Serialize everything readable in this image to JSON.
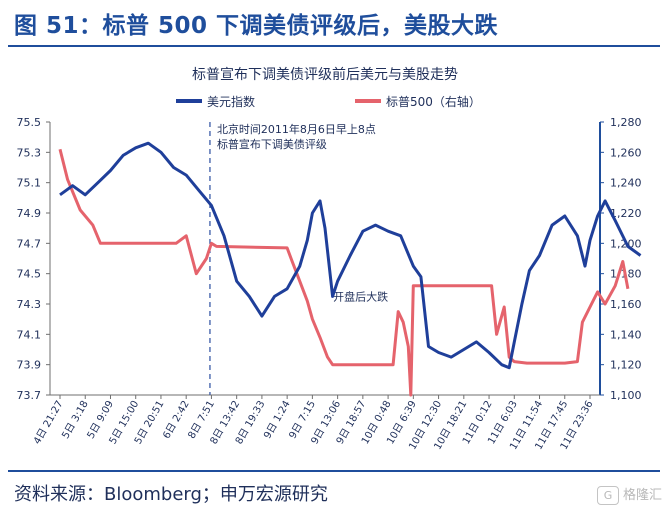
{
  "figure": {
    "title": "图 51：标普 500 下调美债评级后，美股大跌",
    "source": "资料来源：Bloomberg；申万宏源研究",
    "watermark": "格隆汇",
    "watermark_badge": "G"
  },
  "colors": {
    "heading": "#1f4e9c",
    "usd": "#1f3f9a",
    "spx": "#e5636c",
    "right_axis": "#1f4e9c"
  },
  "chart_data": {
    "type": "line",
    "title": "标普宣布下调美债评级前后美元与美股走势",
    "legend": [
      "美元指数",
      "标普500（右轴）"
    ],
    "legend_position": "top",
    "x_tick_labels": [
      "4日 21:27",
      "5日 3:18",
      "5日 9:09",
      "5日 15:00",
      "5日 20:51",
      "6日 2:42",
      "8日 7:51",
      "8日 13:42",
      "8日 19:33",
      "9日 1:24",
      "9日 7:15",
      "9日 13:06",
      "9日 18:57",
      "10日 0:48",
      "10日 6:39",
      "10日 12:30",
      "10日 18:21",
      "11日 0:12",
      "11日 6:03",
      "11日 11:54",
      "11日 17:45",
      "11日 23:36"
    ],
    "left_axis": {
      "ylim": [
        73.7,
        75.5
      ],
      "ticks": [
        "73.7",
        "73.9",
        "74.1",
        "74.3",
        "74.5",
        "74.7",
        "74.9",
        "75.1",
        "75.3",
        "75.5"
      ]
    },
    "right_axis": {
      "ylim": [
        1100,
        1280
      ],
      "ticks": [
        "1,100",
        "1,120",
        "1,140",
        "1,160",
        "1,180",
        "1,200",
        "1,220",
        "1,240",
        "1,260",
        "1,280"
      ]
    },
    "grid": false,
    "series": [
      {
        "name": "美元指数",
        "axis": "left",
        "points": [
          [
            0,
            75.02
          ],
          [
            0.5,
            75.08
          ],
          [
            1,
            75.02
          ],
          [
            1.5,
            75.1
          ],
          [
            2,
            75.18
          ],
          [
            2.5,
            75.28
          ],
          [
            3,
            75.33
          ],
          [
            3.5,
            75.36
          ],
          [
            4,
            75.3
          ],
          [
            4.5,
            75.2
          ],
          [
            5,
            75.15
          ],
          [
            5.5,
            75.05
          ],
          [
            6,
            74.95
          ],
          [
            6.5,
            74.75
          ],
          [
            7,
            74.45
          ],
          [
            7.5,
            74.35
          ],
          [
            8,
            74.22
          ],
          [
            8.5,
            74.35
          ],
          [
            9,
            74.4
          ],
          [
            9.5,
            74.55
          ],
          [
            9.8,
            74.72
          ],
          [
            10,
            74.9
          ],
          [
            10.3,
            74.98
          ],
          [
            10.5,
            74.8
          ],
          [
            10.8,
            74.35
          ],
          [
            11,
            74.45
          ],
          [
            11.5,
            74.62
          ],
          [
            12,
            74.78
          ],
          [
            12.5,
            74.82
          ],
          [
            13,
            74.78
          ],
          [
            13.5,
            74.75
          ],
          [
            14,
            74.55
          ],
          [
            14.3,
            74.48
          ],
          [
            14.6,
            74.02
          ],
          [
            15,
            73.98
          ],
          [
            15.5,
            73.95
          ],
          [
            16,
            74.0
          ],
          [
            16.5,
            74.05
          ],
          [
            17,
            73.98
          ],
          [
            17.5,
            73.9
          ],
          [
            17.8,
            73.88
          ],
          [
            18,
            74.05
          ],
          [
            18.3,
            74.3
          ],
          [
            18.6,
            74.52
          ],
          [
            19,
            74.62
          ],
          [
            19.5,
            74.82
          ],
          [
            20,
            74.88
          ],
          [
            20.5,
            74.75
          ],
          [
            20.8,
            74.55
          ],
          [
            21,
            74.72
          ],
          [
            21.3,
            74.88
          ],
          [
            21.6,
            74.98
          ],
          [
            22,
            74.85
          ],
          [
            22.5,
            74.68
          ],
          [
            23,
            74.62
          ]
        ]
      },
      {
        "name": "标普500（右轴）",
        "axis": "right",
        "points": [
          [
            0,
            1262
          ],
          [
            0.3,
            1242
          ],
          [
            0.8,
            1222
          ],
          [
            1.3,
            1212
          ],
          [
            1.6,
            1200
          ],
          [
            2.6,
            1200
          ],
          [
            3.6,
            1200
          ],
          [
            4.6,
            1200
          ],
          [
            5.0,
            1205
          ],
          [
            5.4,
            1180
          ],
          [
            5.8,
            1190
          ],
          [
            6.0,
            1200
          ],
          [
            6.2,
            1198
          ],
          [
            9.0,
            1197
          ],
          [
            9.2,
            1188
          ],
          [
            9.5,
            1175
          ],
          [
            9.8,
            1162
          ],
          [
            10.0,
            1150
          ],
          [
            10.3,
            1138
          ],
          [
            10.6,
            1125
          ],
          [
            10.8,
            1120
          ],
          [
            11,
            1120
          ],
          [
            12,
            1120
          ],
          [
            13,
            1120
          ],
          [
            13.2,
            1120
          ],
          [
            13.4,
            1155
          ],
          [
            13.6,
            1148
          ],
          [
            13.8,
            1132
          ],
          [
            13.9,
            1100
          ],
          [
            14.0,
            1172
          ],
          [
            15,
            1172
          ],
          [
            16,
            1172
          ],
          [
            17,
            1172
          ],
          [
            17.1,
            1172
          ],
          [
            17.3,
            1140
          ],
          [
            17.6,
            1158
          ],
          [
            17.8,
            1125
          ],
          [
            18.0,
            1122
          ],
          [
            18.5,
            1121
          ],
          [
            19,
            1121
          ],
          [
            20,
            1121
          ],
          [
            20.5,
            1122
          ],
          [
            20.7,
            1148
          ],
          [
            21.0,
            1158
          ],
          [
            21.3,
            1168
          ],
          [
            21.6,
            1160
          ],
          [
            22,
            1172
          ],
          [
            22.3,
            1188
          ],
          [
            22.5,
            1170
          ]
        ]
      }
    ],
    "annotations": [
      {
        "lines": [
          "北京时间2011年8月6日早上8点",
          "标普宣布下调美债评级"
        ],
        "x_index": 6.1
      },
      {
        "text": "开盘后大跌",
        "x_index": 10.9,
        "y_right": 1165
      }
    ]
  }
}
